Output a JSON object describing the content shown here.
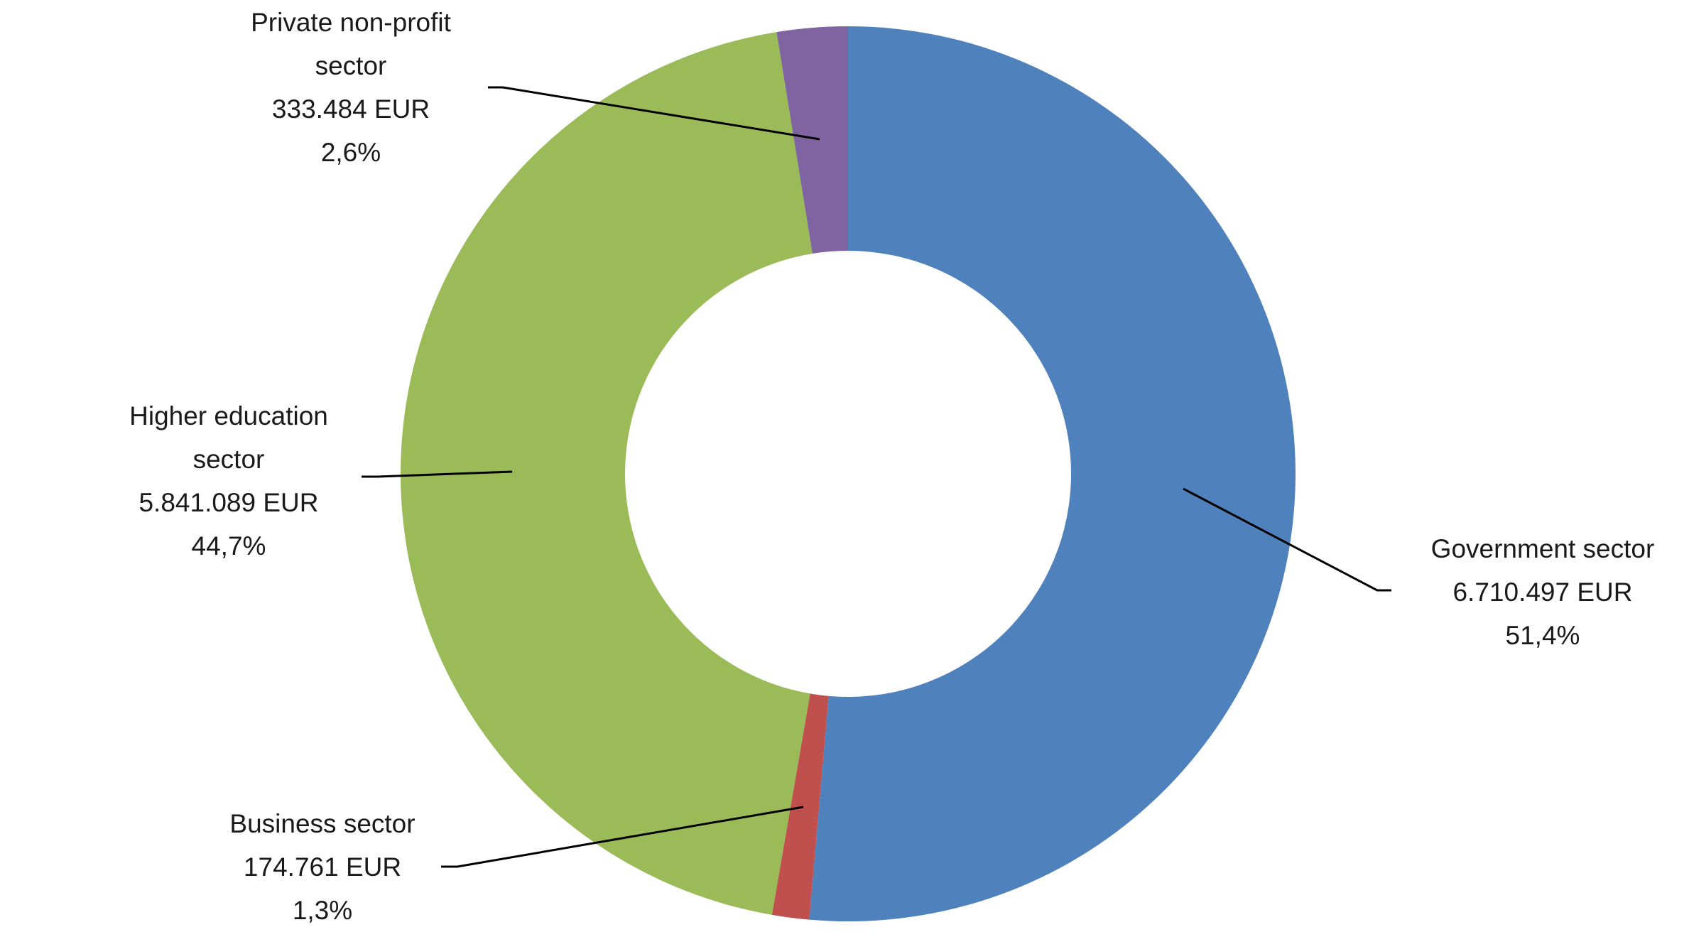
{
  "chart_data": {
    "type": "donut",
    "categories": [
      "Government sector",
      "Business sector",
      "Higher education sector",
      "Private non-profit sector"
    ],
    "values": [
      6710497,
      174761,
      5841089,
      333484
    ],
    "value_labels": [
      "6.710.497 EUR",
      "174.761 EUR",
      "5.841.089 EUR",
      "333.484 EUR"
    ],
    "shares": [
      51.4,
      1.3,
      44.7,
      2.6
    ],
    "share_labels": [
      "51,4%",
      "1,3%",
      "44,7%",
      "2,6%"
    ],
    "colors": [
      "#4f81bd",
      "#c0504d",
      "#9bbb59",
      "#8064a2"
    ]
  }
}
